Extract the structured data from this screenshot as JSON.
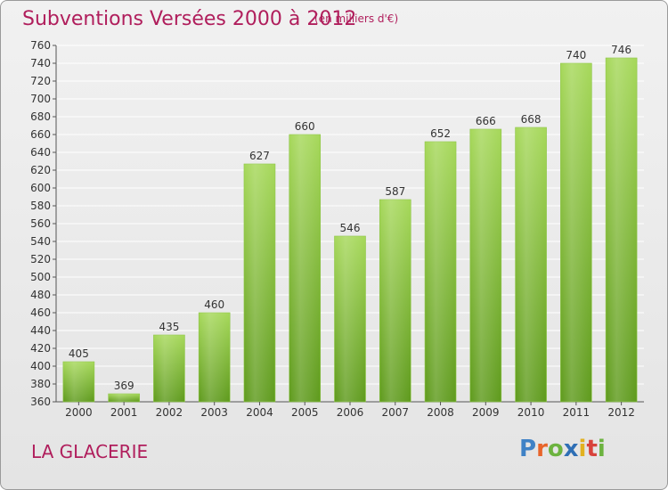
{
  "header": {
    "title": "Subventions Versées 2000 à 2012",
    "subtitle": "(en milliers d'€)"
  },
  "footer": {
    "commune": "LA GLACERIE",
    "logo": {
      "name": "Proxiti",
      "letters": [
        "P",
        "r",
        "o",
        "x",
        "i",
        "t",
        "i"
      ]
    }
  },
  "colors": {
    "title": "#b01e5c",
    "bar_top": "#a6d85a",
    "bar_bottom": "#5e9a1c",
    "grid": "#ffffff",
    "axis_text": "#333333"
  },
  "chart_data": {
    "type": "bar",
    "categories": [
      "2000",
      "2001",
      "2002",
      "2003",
      "2004",
      "2005",
      "2006",
      "2007",
      "2008",
      "2009",
      "2010",
      "2011",
      "2012"
    ],
    "values": [
      405,
      369,
      435,
      460,
      627,
      660,
      546,
      587,
      652,
      666,
      668,
      740,
      746
    ],
    "data_labels": [
      "405",
      "369",
      "435",
      "460",
      "627",
      "660",
      "546",
      "587",
      "652",
      "666",
      "668",
      "740",
      "746"
    ],
    "ylim": [
      360,
      760
    ],
    "y_ticks": [
      "360",
      "380",
      "400",
      "420",
      "440",
      "460",
      "480",
      "500",
      "520",
      "540",
      "560",
      "580",
      "600",
      "620",
      "640",
      "660",
      "680",
      "700",
      "720",
      "740",
      "760"
    ],
    "grid": true,
    "legend": "none"
  }
}
